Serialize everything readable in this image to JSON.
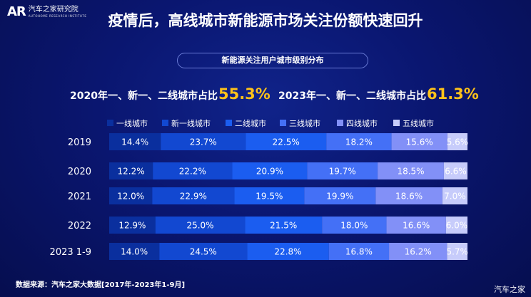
{
  "logo": {
    "mark": "AR",
    "name_cn": "汽车之家研究院",
    "name_en": "AUTOHOME RESEARCH INSTITUTE"
  },
  "title": "疫情后，高线城市新能源市场关注份额快速回升",
  "subtitle": "新能源关注用户城市级别分布",
  "stats": [
    {
      "label": "2020年一、新一、二线城市占比",
      "value": "55.3%"
    },
    {
      "label": "2023年一、新一、二线城市占比",
      "value": "61.3%"
    }
  ],
  "chart_data": {
    "type": "bar",
    "orientation": "horizontal",
    "stacked": true,
    "percent_stacked": true,
    "categories": [
      "2019",
      "2020",
      "2021",
      "2022",
      "2023 1-9"
    ],
    "series": [
      {
        "name": "一线城市",
        "color": "#0a2f9e",
        "values": [
          14.4,
          12.2,
          12.0,
          12.9,
          14.0
        ]
      },
      {
        "name": "新一线城市",
        "color": "#1248d1",
        "values": [
          23.7,
          22.2,
          22.9,
          25.0,
          24.5
        ]
      },
      {
        "name": "二线城市",
        "color": "#1b5df0",
        "values": [
          22.5,
          20.9,
          19.5,
          21.5,
          22.8
        ]
      },
      {
        "name": "三线城市",
        "color": "#4470f6",
        "values": [
          18.2,
          19.7,
          19.9,
          18.0,
          16.8
        ]
      },
      {
        "name": "四线城市",
        "color": "#8290f7",
        "values": [
          15.6,
          18.5,
          18.6,
          16.6,
          16.2
        ]
      },
      {
        "name": "五线城市",
        "color": "#c7ccfb",
        "values": [
          5.6,
          6.6,
          7.0,
          6.0,
          5.7
        ]
      }
    ],
    "legend_position": "top",
    "value_suffix": "%",
    "grid": false
  },
  "source": "数据来源：汽车之家大数据[2017年-2023年1-9月]",
  "watermark": "汽车之家"
}
